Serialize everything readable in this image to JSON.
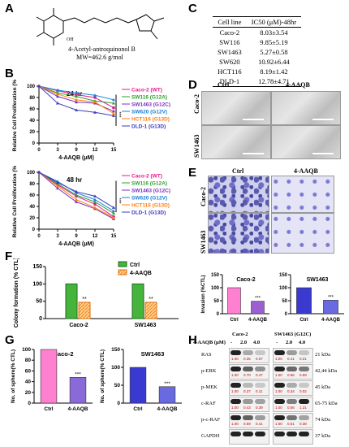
{
  "panels": {
    "A": "A",
    "B": "B",
    "C": "C",
    "D": "D",
    "E": "E",
    "F": "F",
    "G": "G",
    "H": "H"
  },
  "compound": {
    "name": "4-Acetyl-antroquinonol B",
    "mw": "MW=462.6 g/mol"
  },
  "table": {
    "headers": [
      "Cell line",
      "IC50 (μM)-48hr"
    ],
    "rows": [
      [
        "Caco-2",
        "8.03±3.54"
      ],
      [
        "SW116",
        "9.85±5.19"
      ],
      [
        "SW1463",
        "5.27±0.58"
      ],
      [
        "SW620",
        "10.92±6.44"
      ],
      [
        "HCT116",
        "8.19±1.42"
      ],
      [
        "DLD-1",
        "12.78±4.71"
      ]
    ]
  },
  "line_charts": {
    "ylabel": "Relative Cell Proliferation (%)",
    "xlabel": "4-AAQB (μM)",
    "significance": "***",
    "legend": [
      "Caco-2 (WT)",
      "SW116 (G12A)",
      "SW1463 (G12C)",
      "SW620 (G12V)",
      "HCT116 (G13D)",
      "DLD-1 (G13D)"
    ],
    "colors": [
      "#e61a8d",
      "#2ca02c",
      "#7b2fbf",
      "#1a7fd6",
      "#ff7f0e",
      "#3a3ac0"
    ]
  },
  "micro_d": {
    "col1": "Ctrl",
    "col2": "4-AAQB",
    "row1": "Caco-2",
    "row2": "SW1463"
  },
  "micro_e": {
    "col1": "Ctrl",
    "col2": "4-AAQB",
    "row1": "Caco-2",
    "row2": "SW1463"
  },
  "colony": {
    "ylabel": "Colony formation (% CTL)",
    "legend_ctrl": "Ctrl",
    "legend_trt": "4-AAQB",
    "sig": "**"
  },
  "invasion": {
    "ylabel": "Invasion (%CTL)",
    "sig": "***"
  },
  "sphere": {
    "ylabel": "No. of sphere(% CTL)",
    "sig": "***"
  },
  "blot": {
    "treatment_label": "4-AAQB (μM)",
    "group1": "Caco-2",
    "group2": "SW1463 (G12C)",
    "doses": [
      "-",
      "2.0",
      "4.0",
      "-",
      "2.0",
      "4.0"
    ],
    "rows": [
      {
        "name": "RAS",
        "kda": "21 kDa",
        "q1": [
          "1.00",
          "0.35",
          "0.07"
        ],
        "q2": [
          "1.00",
          "0.41",
          "0.21"
        ]
      },
      {
        "name": "p-ERK",
        "kda": "42,44 kDa",
        "q1": [
          "1.00",
          "0.70",
          "0.47"
        ],
        "q2": [
          "1.00",
          "0.66",
          "0.59"
        ]
      },
      {
        "name": "p-MEK",
        "kda": "45 kDa",
        "q1": [
          "1.00",
          "0.27",
          "0.11"
        ],
        "q2": [
          "1.00",
          "0.34",
          "0.02"
        ]
      },
      {
        "name": "c-RAF",
        "kda": "65-75 kDa",
        "q1": [
          "1.00",
          "0.43",
          "0.39"
        ],
        "q2": [
          "1.00",
          "0.56",
          "1.21"
        ]
      },
      {
        "name": "p-c-RAF",
        "kda": "74 kDa",
        "q1": [
          "1.00",
          "0.69",
          "0.41"
        ],
        "q2": [
          "1.00",
          "0.61",
          "0.38"
        ]
      },
      {
        "name": "GAPDH",
        "kda": "37 kDa",
        "q1": [],
        "q2": []
      }
    ]
  },
  "chart_data": [
    {
      "type": "line",
      "title": "24 hr",
      "x": [
        0,
        3,
        9,
        12,
        15
      ],
      "xlabel": "4-AAQB (μM)",
      "ylabel": "Relative Cell Proliferation (%)",
      "ylim": [
        0,
        100
      ],
      "yticks": [
        0,
        20,
        40,
        60,
        80,
        100
      ],
      "series": [
        {
          "name": "Caco-2 (WT)",
          "values": [
            100,
            92,
            85,
            80,
            62
          ]
        },
        {
          "name": "SW116 (G12A)",
          "values": [
            100,
            88,
            82,
            74,
            70
          ]
        },
        {
          "name": "SW1463 (G12C)",
          "values": [
            100,
            82,
            72,
            70,
            56
          ]
        },
        {
          "name": "SW620 (G12V)",
          "values": [
            100,
            93,
            88,
            84,
            76
          ]
        },
        {
          "name": "HCT116 (G13D)",
          "values": [
            100,
            86,
            76,
            72,
            52
          ]
        },
        {
          "name": "DLD-1 (G13D)",
          "values": [
            100,
            70,
            58,
            54,
            48
          ]
        }
      ]
    },
    {
      "type": "line",
      "title": "48 hr",
      "x": [
        0,
        3,
        9,
        12,
        15
      ],
      "xlabel": "4-AAQB (μM)",
      "ylabel": "Relative Cell Proliferation (%)",
      "ylim": [
        0,
        100
      ],
      "yticks": [
        0,
        20,
        40,
        60,
        80,
        100
      ],
      "series": [
        {
          "name": "Caco-2 (WT)",
          "values": [
            100,
            78,
            58,
            44,
            22
          ]
        },
        {
          "name": "SW116 (G12A)",
          "values": [
            100,
            80,
            60,
            48,
            28
          ]
        },
        {
          "name": "SW1463 (G12C)",
          "values": [
            100,
            72,
            48,
            36,
            18
          ]
        },
        {
          "name": "SW620 (G12V)",
          "values": [
            100,
            84,
            64,
            52,
            32
          ]
        },
        {
          "name": "HCT116 (G13D)",
          "values": [
            100,
            76,
            52,
            38,
            20
          ]
        },
        {
          "name": "DLD-1 (G13D)",
          "values": [
            100,
            82,
            66,
            58,
            38
          ]
        }
      ]
    },
    {
      "type": "bar",
      "title": "",
      "categories": [
        "Caco-2",
        "SW1463"
      ],
      "series": [
        {
          "name": "Ctrl",
          "values": [
            100,
            100
          ]
        },
        {
          "name": "4-AAQB",
          "values": [
            47,
            47
          ]
        }
      ],
      "ylabel": "Colony formation (% CTL)",
      "ylim": [
        0,
        150
      ],
      "yticks": [
        0,
        50,
        100,
        150
      ]
    },
    {
      "type": "bar",
      "title": "Caco-2",
      "categories": [
        "Ctrl",
        "4-AAQB"
      ],
      "values": [
        100,
        48
      ],
      "ylabel": "Invasion (%CTL)",
      "ylim": [
        0,
        150
      ],
      "yticks": [
        0,
        50,
        100,
        150
      ]
    },
    {
      "type": "bar",
      "title": "SW1463",
      "categories": [
        "Ctrl",
        "4-AAQB"
      ],
      "values": [
        100,
        52
      ],
      "ylim": [
        0,
        150
      ],
      "yticks": [
        0,
        50,
        100,
        150
      ]
    },
    {
      "type": "bar",
      "title": "Caco-2",
      "categories": [
        "Ctrl",
        "4-AAQB"
      ],
      "values": [
        100,
        48
      ],
      "ylabel": "No. of sphere(% CTL)",
      "ylim": [
        0,
        100
      ],
      "yticks": [
        0,
        20,
        40,
        60,
        80,
        100
      ]
    },
    {
      "type": "bar",
      "title": "SW1463",
      "categories": [
        "Ctrl",
        "4-AAQB"
      ],
      "values": [
        100,
        46
      ],
      "ylabel": "No. of sphere(% CTL)",
      "ylim": [
        0,
        150
      ],
      "yticks": [
        0,
        50,
        100,
        150
      ]
    }
  ]
}
